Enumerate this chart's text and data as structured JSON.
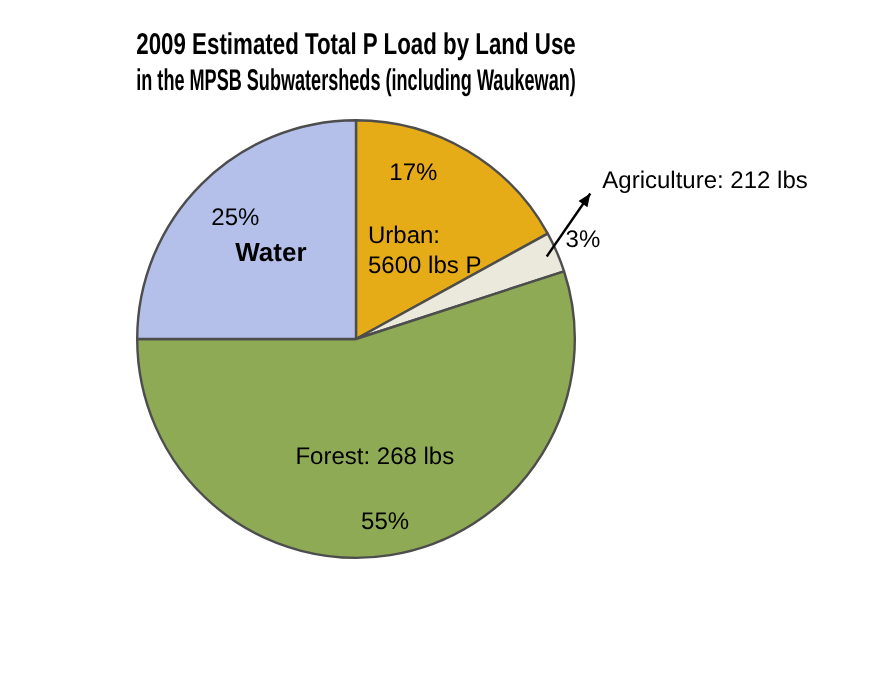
{
  "chart_data": {
    "type": "pie",
    "title": "2009 Estimated Total P Load by Land Use\nin the MPSB Subwatersheds (including Waukewan)",
    "categories": [
      "Urban: 5600 lbs P",
      "Agriculture: 212 lbs",
      "Forest: 268 lbs",
      "Water"
    ],
    "values": [
      17,
      3,
      55,
      25
    ],
    "colors": [
      "#e6ac17",
      "#ebe8dc",
      "#8faa54",
      "#b4c0ea"
    ],
    "value_labels": [
      "17%",
      "3%",
      "55%",
      "25%"
    ],
    "legend": false
  }
}
